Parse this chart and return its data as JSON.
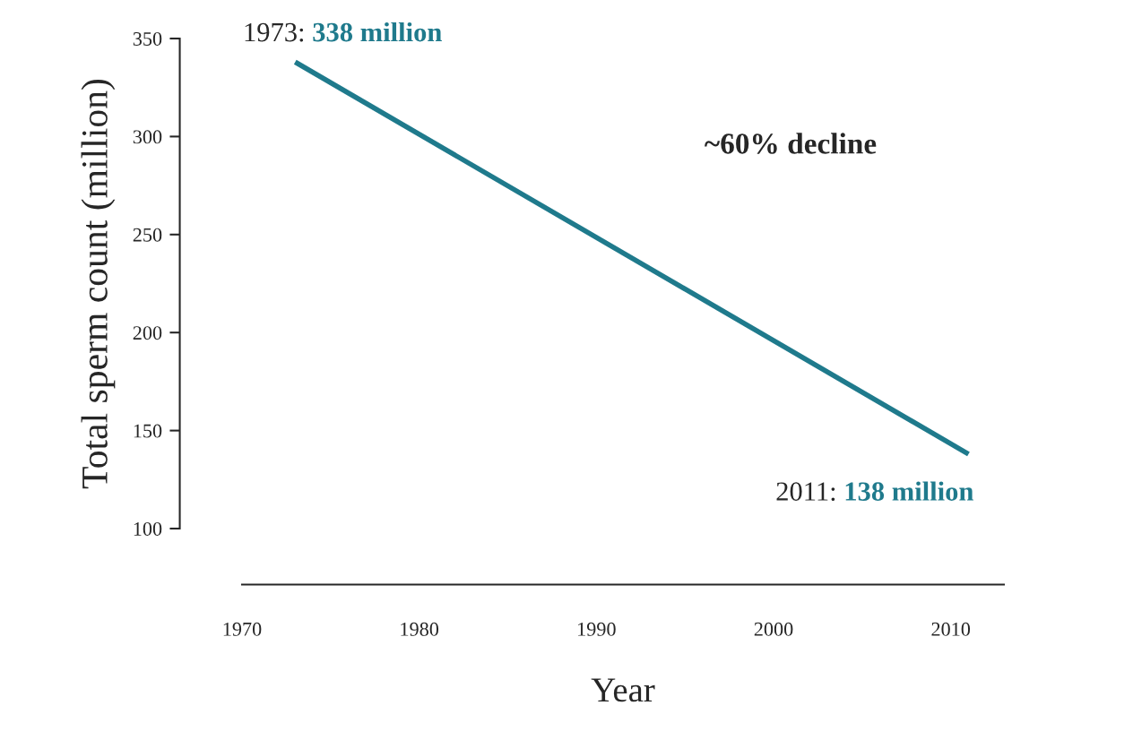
{
  "chart_data": {
    "type": "line",
    "xlabel": "Year",
    "ylabel": "Total sperm count (million)",
    "series": [
      {
        "color": "#1f7a8c",
        "x": [
          1973,
          2011
        ],
        "values": [
          338,
          138
        ]
      }
    ],
    "xlim": [
      1970,
      2013
    ],
    "xticks": [
      1970,
      1980,
      1990,
      2000,
      2010
    ],
    "ylim": [
      100,
      350
    ],
    "yticks": [
      100,
      150,
      200,
      250,
      300,
      350
    ],
    "grid": false,
    "legend": false,
    "marker": "none",
    "line_style": "solid",
    "annotations": [
      {
        "text": "1973: 338 million",
        "x": 1973,
        "y": 338
      },
      {
        "text": "2011: 138 million",
        "x": 2011,
        "y": 138
      },
      "~60% decline"
    ]
  }
}
